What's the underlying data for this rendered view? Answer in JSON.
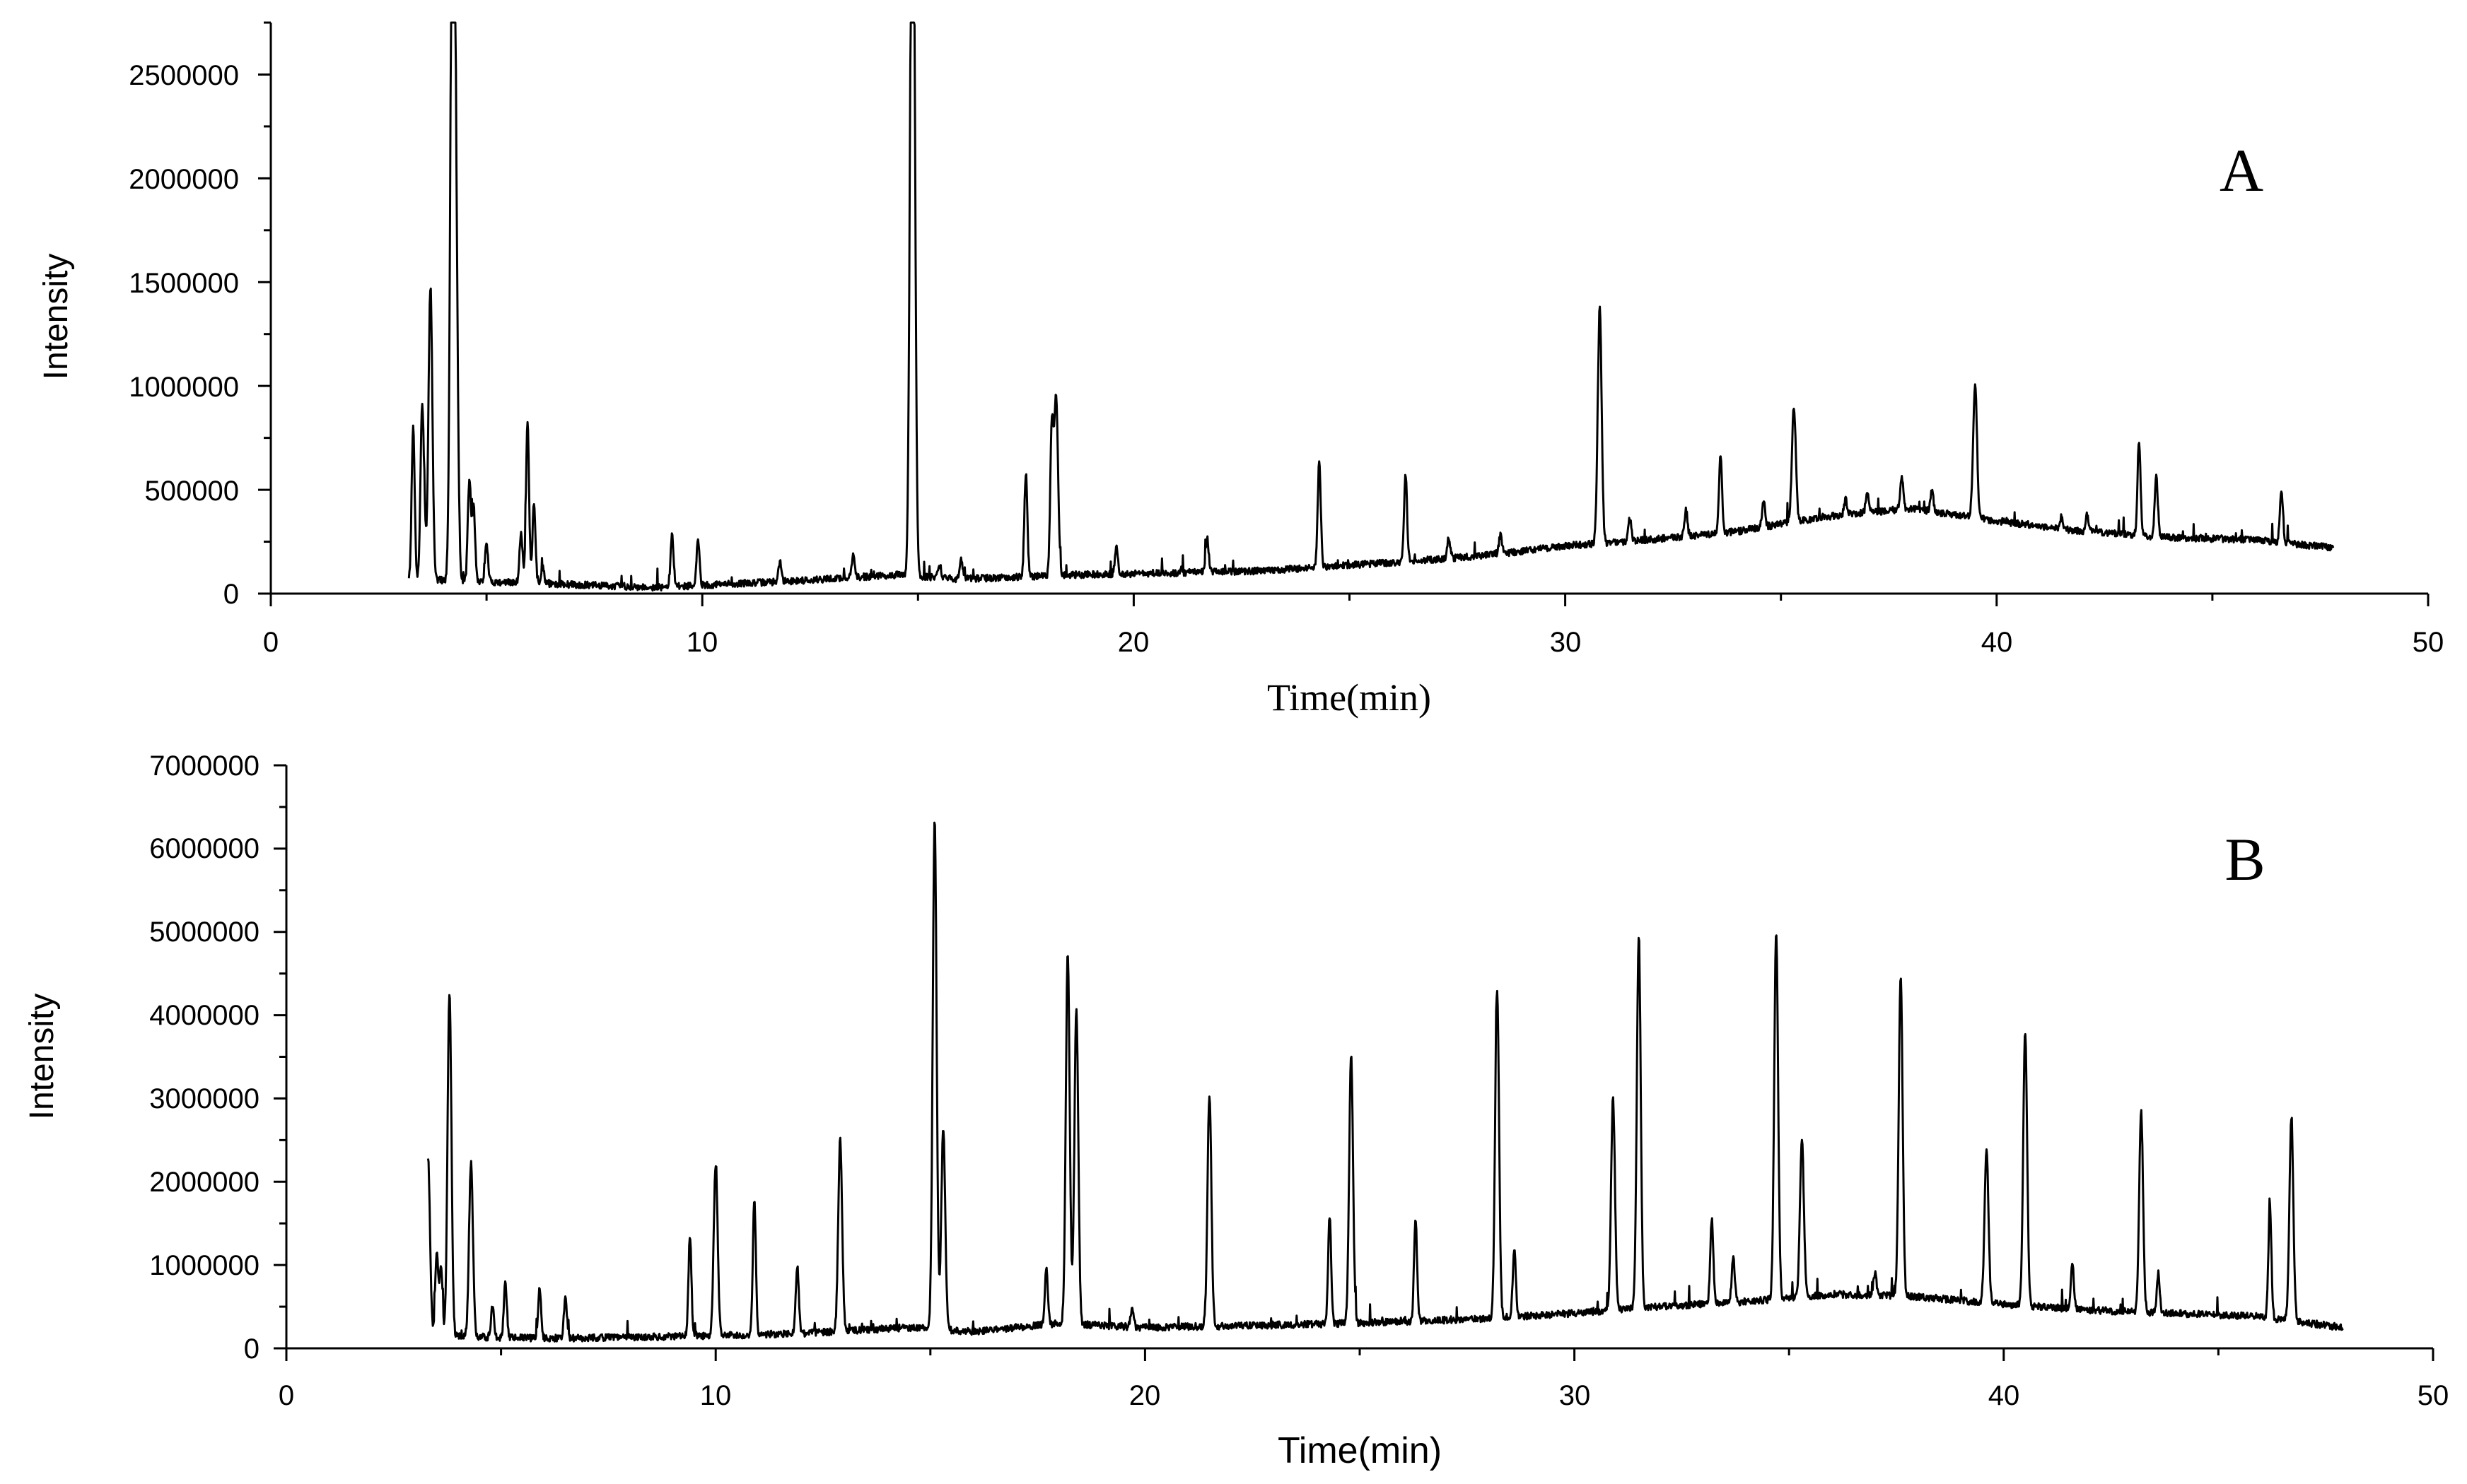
{
  "chart_data": [
    {
      "type": "line",
      "panel_label": "A",
      "xlabel": "Time(min)",
      "ylabel": "Intensity",
      "xlim": [
        0,
        50
      ],
      "ylim": [
        0,
        2750000
      ],
      "x_ticks": [
        "0",
        "10",
        "20",
        "30",
        "40",
        "50"
      ],
      "y_ticks": [
        "0",
        "500000",
        "1000000",
        "1500000",
        "2000000",
        "2500000"
      ],
      "trace_range": [
        3.2,
        47.8
      ],
      "baseline": [
        [
          3.2,
          70000
        ],
        [
          6,
          50000
        ],
        [
          9,
          30000
        ],
        [
          12,
          60000
        ],
        [
          14.5,
          90000
        ],
        [
          16,
          70000
        ],
        [
          18.5,
          90000
        ],
        [
          21,
          100000
        ],
        [
          23,
          110000
        ],
        [
          26,
          150000
        ],
        [
          28,
          180000
        ],
        [
          30,
          230000
        ],
        [
          32,
          260000
        ],
        [
          34,
          300000
        ],
        [
          36,
          370000
        ],
        [
          38,
          410000
        ],
        [
          40,
          350000
        ],
        [
          42,
          300000
        ],
        [
          44,
          270000
        ],
        [
          46,
          260000
        ],
        [
          47.8,
          220000
        ]
      ],
      "peaks": [
        [
          3.3,
          800000
        ],
        [
          3.5,
          780000
        ],
        [
          3.55,
          380000
        ],
        [
          3.7,
          1480000
        ],
        [
          4.2,
          2750000
        ],
        [
          4.25,
          1720000
        ],
        [
          4.3,
          1060000
        ],
        [
          4.6,
          540000
        ],
        [
          4.7,
          420000
        ],
        [
          5.0,
          240000
        ],
        [
          5.8,
          300000
        ],
        [
          5.95,
          820000
        ],
        [
          6.1,
          430000
        ],
        [
          6.3,
          130000
        ],
        [
          9.3,
          280000
        ],
        [
          9.9,
          260000
        ],
        [
          11.8,
          150000
        ],
        [
          13.5,
          180000
        ],
        [
          14.85,
          2580000
        ],
        [
          14.9,
          2200000
        ],
        [
          15.5,
          140000
        ],
        [
          16.0,
          160000
        ],
        [
          17.5,
          580000
        ],
        [
          18.1,
          780000
        ],
        [
          18.2,
          950000
        ],
        [
          19.6,
          220000
        ],
        [
          21.7,
          270000
        ],
        [
          24.3,
          640000
        ],
        [
          26.3,
          570000
        ],
        [
          27.3,
          270000
        ],
        [
          28.5,
          280000
        ],
        [
          30.8,
          1370000
        ],
        [
          31.5,
          360000
        ],
        [
          32.8,
          400000
        ],
        [
          33.6,
          660000
        ],
        [
          34.6,
          450000
        ],
        [
          35.3,
          900000
        ],
        [
          36.5,
          450000
        ],
        [
          37.0,
          480000
        ],
        [
          37.8,
          560000
        ],
        [
          38.5,
          500000
        ],
        [
          39.5,
          1000000
        ],
        [
          40.2,
          350000
        ],
        [
          41.5,
          370000
        ],
        [
          42.1,
          380000
        ],
        [
          43.3,
          740000
        ],
        [
          43.7,
          560000
        ],
        [
          46.6,
          500000
        ]
      ]
    },
    {
      "type": "line",
      "panel_label": "B",
      "xlabel": "Time(min)",
      "ylabel": "Intensity",
      "xlim": [
        0,
        50
      ],
      "ylim": [
        0,
        7000000
      ],
      "x_ticks": [
        "0",
        "10",
        "20",
        "30",
        "40",
        "50"
      ],
      "y_ticks": [
        "0",
        "1000000",
        "2000000",
        "3000000",
        "4000000",
        "5000000",
        "6000000",
        "7000000"
      ],
      "trace_range": [
        3.3,
        47.9
      ],
      "baseline": [
        [
          3.3,
          150000
        ],
        [
          6,
          120000
        ],
        [
          9,
          140000
        ],
        [
          12,
          180000
        ],
        [
          14.5,
          250000
        ],
        [
          16,
          200000
        ],
        [
          18,
          300000
        ],
        [
          20,
          250000
        ],
        [
          22,
          270000
        ],
        [
          24,
          290000
        ],
        [
          26,
          320000
        ],
        [
          28,
          360000
        ],
        [
          30,
          420000
        ],
        [
          32,
          500000
        ],
        [
          34,
          560000
        ],
        [
          36,
          650000
        ],
        [
          38,
          620000
        ],
        [
          40,
          530000
        ],
        [
          42,
          460000
        ],
        [
          44,
          420000
        ],
        [
          46,
          380000
        ],
        [
          47.9,
          250000
        ]
      ],
      "peaks": [
        [
          3.3,
          2300000
        ],
        [
          3.5,
          1150000
        ],
        [
          3.6,
          1000000
        ],
        [
          3.8,
          4300000
        ],
        [
          4.3,
          2220000
        ],
        [
          4.8,
          500000
        ],
        [
          5.1,
          780000
        ],
        [
          5.9,
          720000
        ],
        [
          6.5,
          600000
        ],
        [
          9.4,
          1330000
        ],
        [
          10.0,
          2230000
        ],
        [
          10.9,
          1800000
        ],
        [
          11.9,
          1000000
        ],
        [
          12.9,
          2520000
        ],
        [
          15.1,
          6380000
        ],
        [
          15.3,
          2650000
        ],
        [
          17.7,
          950000
        ],
        [
          18.2,
          4750000
        ],
        [
          18.4,
          4100000
        ],
        [
          19.7,
          500000
        ],
        [
          21.5,
          3060000
        ],
        [
          24.3,
          1600000
        ],
        [
          24.8,
          3520000
        ],
        [
          26.3,
          1550000
        ],
        [
          28.2,
          4330000
        ],
        [
          28.6,
          1200000
        ],
        [
          30.9,
          3000000
        ],
        [
          31.5,
          4950000
        ],
        [
          33.2,
          1570000
        ],
        [
          33.7,
          1100000
        ],
        [
          34.7,
          5020000
        ],
        [
          35.3,
          2480000
        ],
        [
          37.0,
          900000
        ],
        [
          37.6,
          4480000
        ],
        [
          39.6,
          2400000
        ],
        [
          40.5,
          3800000
        ],
        [
          41.6,
          1000000
        ],
        [
          43.2,
          2860000
        ],
        [
          43.6,
          900000
        ],
        [
          46.2,
          1720000
        ],
        [
          46.7,
          2770000
        ]
      ]
    }
  ]
}
